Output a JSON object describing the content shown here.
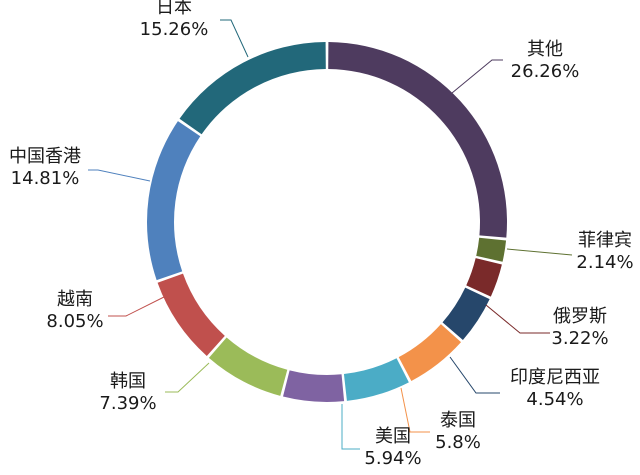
{
  "chart_data": {
    "type": "pie",
    "variant": "donut",
    "title": "",
    "slices": [
      {
        "label": "其他",
        "value": 26.26,
        "value_text": "26.26%",
        "color": "#4e3b5f"
      },
      {
        "label": "菲律宾",
        "value": 2.14,
        "value_text": "2.14%",
        "color": "#5e7131"
      },
      {
        "label": "俄罗斯",
        "value": 3.22,
        "value_text": "3.22%",
        "color": "#7a2a2a"
      },
      {
        "label": "印度尼西亚",
        "value": 4.54,
        "value_text": "4.54%",
        "color": "#26476b"
      },
      {
        "label": "泰国",
        "value": 5.8,
        "value_text": "5.8%",
        "color": "#f3924a"
      },
      {
        "label": "美国",
        "value": 5.94,
        "value_text": "5.94%",
        "color": "#4bacc6"
      },
      {
        "label": "",
        "value": 5.64,
        "value_text": "",
        "color": "#7f63a2"
      },
      {
        "label": "韩国",
        "value": 7.39,
        "value_text": "7.39%",
        "color": "#9bbb59"
      },
      {
        "label": "越南",
        "value": 8.05,
        "value_text": "8.05%",
        "color": "#c0504d"
      },
      {
        "label": "中国香港",
        "value": 14.81,
        "value_text": "14.81%",
        "color": "#4f81bd"
      },
      {
        "label": "日本",
        "value": 15.26,
        "value_text": "15.26%",
        "color": "#22687a"
      }
    ]
  }
}
